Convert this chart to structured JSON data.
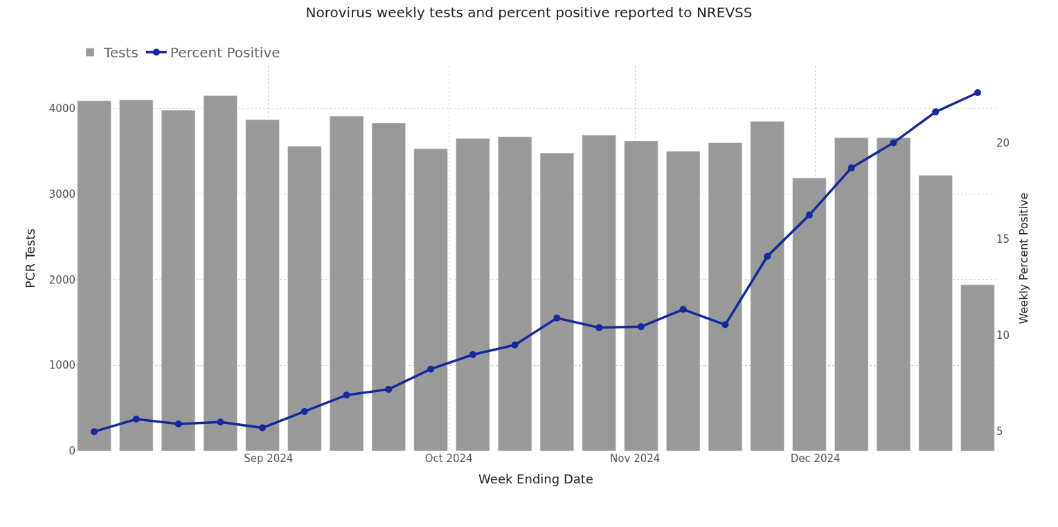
{
  "chart_data": {
    "type": "bar",
    "title": "Norovirus weekly tests and percent positive reported to NREVSS",
    "x": [
      "2024-08-03",
      "2024-08-10",
      "2024-08-17",
      "2024-08-24",
      "2024-08-31",
      "2024-09-07",
      "2024-09-14",
      "2024-09-21",
      "2024-09-28",
      "2024-10-05",
      "2024-10-12",
      "2024-10-19",
      "2024-10-26",
      "2024-11-02",
      "2024-11-09",
      "2024-11-16",
      "2024-11-23",
      "2024-11-30",
      "2024-12-07",
      "2024-12-14",
      "2024-12-21",
      "2024-12-28"
    ],
    "series": [
      {
        "name": "Tests",
        "color": "#999999",
        "values": [
          4090,
          4100,
          3980,
          4150,
          3870,
          3560,
          3910,
          3830,
          3530,
          3650,
          3670,
          3480,
          3690,
          3620,
          3500,
          3600,
          3850,
          3190,
          3660,
          3660,
          3220,
          1940
        ]
      },
      {
        "name": "Percent Positive",
        "type": "line",
        "axis": "y2",
        "color": "#14299f",
        "values": [
          5.0,
          5.65,
          5.4,
          5.5,
          5.2,
          6.05,
          6.9,
          7.2,
          8.25,
          9.0,
          9.5,
          10.9,
          10.4,
          10.45,
          11.35,
          10.55,
          14.1,
          16.25,
          18.7,
          20.0,
          21.6,
          22.6
        ]
      }
    ],
    "xlabel": "Week Ending Date",
    "ylabel": "PCR Tests",
    "y2label": "Weekly Percent Positive",
    "xlim": [
      "2024-07-31",
      "2024-12-31"
    ],
    "xticks": [
      {
        "value": "2024-09-01",
        "label": "Sep 2024"
      },
      {
        "value": "2024-10-01",
        "label": "Oct 2024"
      },
      {
        "value": "2024-11-01",
        "label": "Nov 2024"
      },
      {
        "value": "2024-12-01",
        "label": "Dec 2024"
      }
    ],
    "ylim": [
      0,
      4500
    ],
    "yticks": [
      0,
      1000,
      2000,
      3000,
      4000
    ],
    "y2lim": [
      4,
      24
    ],
    "y2ticks": [
      5,
      10,
      15,
      20
    ],
    "grid": true,
    "legend": "top left",
    "marker": "circle",
    "line_style": "solid"
  }
}
